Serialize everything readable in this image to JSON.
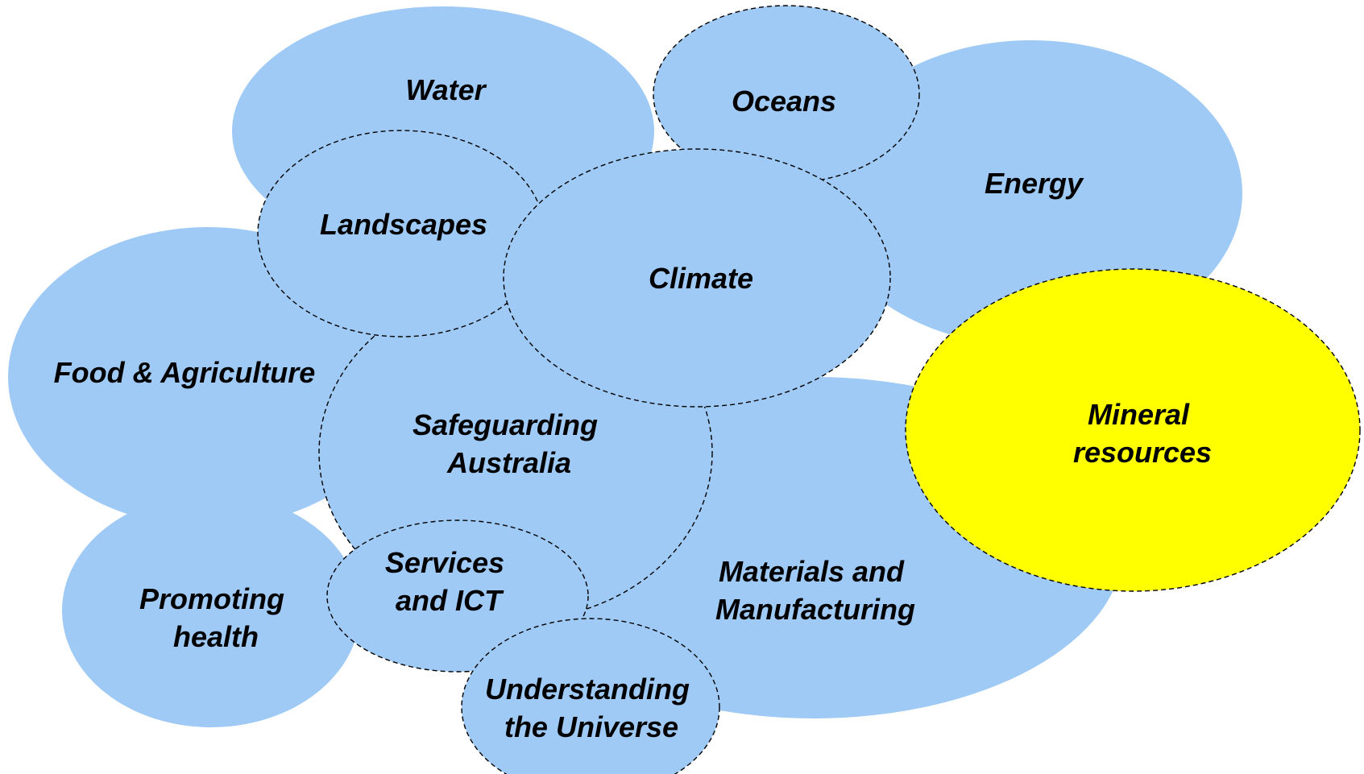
{
  "colors": {
    "bubble_fill": "#9fcaf6",
    "highlight_fill": "#ffff00",
    "outline": "#000000",
    "text": "#000000"
  },
  "topics": [
    {
      "id": "water",
      "lines": [
        "Water"
      ],
      "highlight": false
    },
    {
      "id": "oceans",
      "lines": [
        "Oceans"
      ],
      "highlight": false
    },
    {
      "id": "energy",
      "lines": [
        "Energy"
      ],
      "highlight": false
    },
    {
      "id": "landscapes",
      "lines": [
        "Landscapes"
      ],
      "highlight": false
    },
    {
      "id": "climate",
      "lines": [
        "Climate"
      ],
      "highlight": false
    },
    {
      "id": "food-agriculture",
      "lines": [
        "Food & Agriculture"
      ],
      "highlight": false
    },
    {
      "id": "safeguarding-australia",
      "lines": [
        "Safeguarding",
        "Australia"
      ],
      "highlight": false
    },
    {
      "id": "mineral-resources",
      "lines": [
        "Mineral",
        "resources"
      ],
      "highlight": true
    },
    {
      "id": "materials-manufacturing",
      "lines": [
        "Materials and",
        "Manufacturing"
      ],
      "highlight": false
    },
    {
      "id": "services-ict",
      "lines": [
        "Services",
        "and ICT"
      ],
      "highlight": false
    },
    {
      "id": "promoting-health",
      "lines": [
        "Promoting",
        "health"
      ],
      "highlight": false
    },
    {
      "id": "understanding-universe",
      "lines": [
        "Understanding",
        "the Universe"
      ],
      "highlight": false
    }
  ]
}
